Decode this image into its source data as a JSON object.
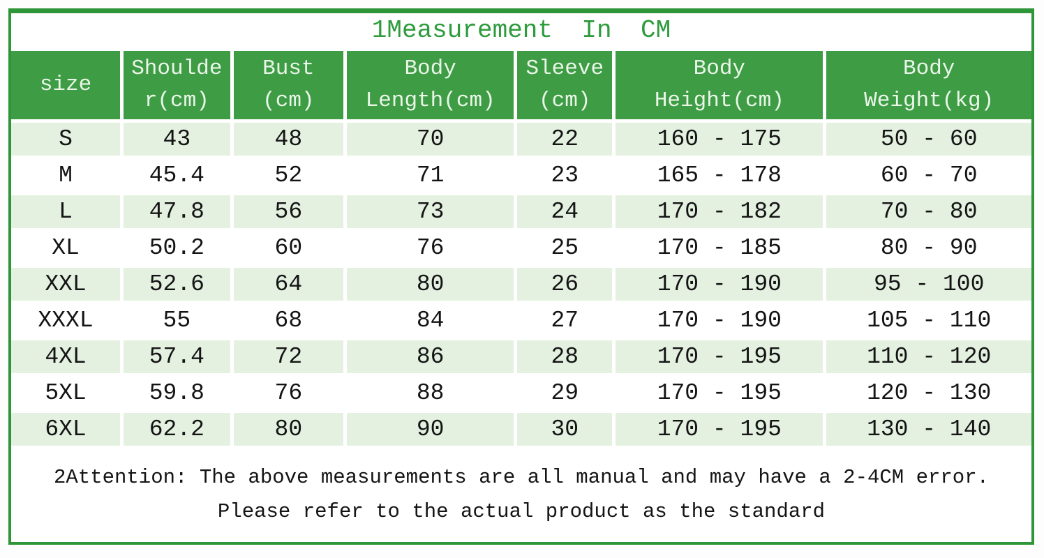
{
  "title": "1Measurement In CM",
  "table": {
    "headers": [
      "size",
      "Shoulde\nr(cm)",
      "Bust\n(cm)",
      "Body\nLength(cm)",
      "Sleeve\n(cm)",
      "Body\nHeight(cm)",
      "Body\nWeight(kg)"
    ],
    "rows": [
      {
        "cells": [
          "S",
          "43",
          "48",
          "70",
          "22",
          "160 - 175",
          "50 - 60"
        ]
      },
      {
        "cells": [
          "M",
          "45.4",
          "52",
          "71",
          "23",
          "165 - 178",
          "60 - 70"
        ]
      },
      {
        "cells": [
          "L",
          "47.8",
          "56",
          "73",
          "24",
          "170 - 182",
          "70 - 80"
        ]
      },
      {
        "cells": [
          "XL",
          "50.2",
          "60",
          "76",
          "25",
          "170 - 185",
          "80 - 90"
        ]
      },
      {
        "cells": [
          "XXL",
          "52.6",
          "64",
          "80",
          "26",
          "170 - 190",
          "95 - 100"
        ]
      },
      {
        "cells": [
          "XXXL",
          "55",
          "68",
          "84",
          "27",
          "170 - 190",
          "105 - 110"
        ]
      },
      {
        "cells": [
          "4XL",
          "57.4",
          "72",
          "86",
          "28",
          "170 - 195",
          "110 - 120"
        ]
      },
      {
        "cells": [
          "5XL",
          "59.8",
          "76",
          "88",
          "29",
          "170 - 195",
          "120 - 130"
        ]
      },
      {
        "cells": [
          "6XL",
          "62.2",
          "80",
          "90",
          "30",
          "170 - 195",
          "130 - 140"
        ]
      }
    ]
  },
  "notes": {
    "line1": "2Attention: The above measurements are all manual and may have a 2-4CM error.",
    "line2": "Please refer to the actual product as the standard"
  },
  "colors": {
    "border_green": "#2e9638",
    "header_green": "#3e9c45",
    "header_text": "#eaf6e8",
    "title_green": "#2e9b3c",
    "row_green": "#e4f1e1",
    "text": "#141414"
  },
  "chart_data": {
    "type": "table",
    "title": "1Measurement In CM",
    "columns": [
      "size",
      "Shoulder(cm)",
      "Bust(cm)",
      "Body Length(cm)",
      "Sleeve(cm)",
      "Body Height(cm)",
      "Body Weight(kg)"
    ],
    "rows": [
      [
        "S",
        43,
        48,
        70,
        22,
        "160 - 175",
        "50 - 60"
      ],
      [
        "M",
        45.4,
        52,
        71,
        23,
        "165 - 178",
        "60 - 70"
      ],
      [
        "L",
        47.8,
        56,
        73,
        24,
        "170 - 182",
        "70 - 80"
      ],
      [
        "XL",
        50.2,
        60,
        76,
        25,
        "170 - 185",
        "80 - 90"
      ],
      [
        "XXL",
        52.6,
        64,
        80,
        26,
        "170 - 190",
        "95 - 100"
      ],
      [
        "XXXL",
        55,
        68,
        84,
        27,
        "170 - 190",
        "105 - 110"
      ],
      [
        "4XL",
        57.4,
        72,
        86,
        28,
        "170 - 195",
        "110 - 120"
      ],
      [
        "5XL",
        59.8,
        76,
        88,
        29,
        "170 - 195",
        "120 - 130"
      ],
      [
        "6XL",
        62.2,
        80,
        90,
        30,
        "170 - 195",
        "130 - 140"
      ]
    ],
    "annotations": [
      "2Attention: The above measurements are all manual and may have a 2-4CM error.",
      "Please refer to the actual product as the standard"
    ]
  }
}
